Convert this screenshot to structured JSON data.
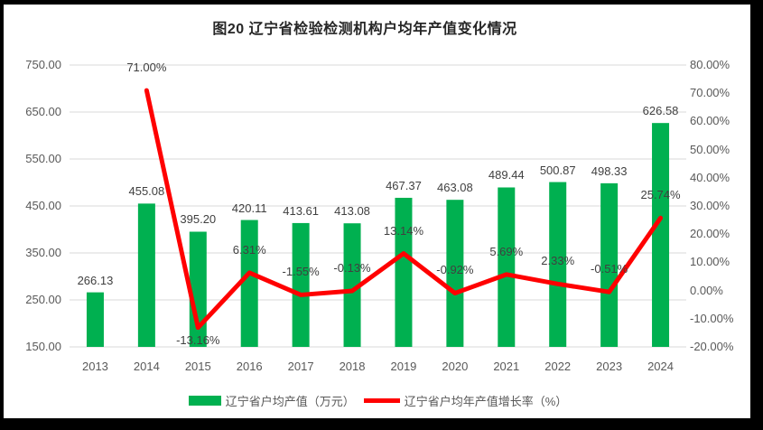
{
  "chart_data": {
    "type": "bar",
    "subtype": "combo-bar-line-dual-axis",
    "title": "图20 辽宁省检验检测机构户均年产值变化情况",
    "categories": [
      "2013",
      "2014",
      "2015",
      "2016",
      "2017",
      "2018",
      "2019",
      "2020",
      "2021",
      "2022",
      "2023",
      "2024"
    ],
    "series": [
      {
        "name": "辽宁省户均产值（万元）",
        "type": "bar",
        "axis": "left",
        "color": "#00B050",
        "values": [
          266.13,
          455.08,
          395.2,
          420.11,
          413.61,
          413.08,
          467.37,
          463.08,
          489.44,
          500.87,
          498.33,
          626.58
        ],
        "labels": [
          "266.13",
          "455.08",
          "395.20",
          "420.11",
          "413.61",
          "413.08",
          "467.37",
          "463.08",
          "489.44",
          "500.87",
          "498.33",
          "626.58"
        ]
      },
      {
        "name": "辽宁省户均年产值增长率（%）",
        "type": "line",
        "axis": "right",
        "color": "#FF0000",
        "values": [
          null,
          71.0,
          -13.16,
          6.31,
          -1.55,
          -0.13,
          13.14,
          -0.92,
          5.69,
          2.33,
          -0.51,
          25.74
        ],
        "labels": [
          null,
          "71.00%",
          "-13.16%",
          "6.31%",
          "-1.55%",
          "-0.13%",
          "13.14%",
          "-0.92%",
          "5.69%",
          "2.33%",
          "-0.51%",
          "25.74%"
        ]
      }
    ],
    "left_axis": {
      "min": 150,
      "max": 750,
      "step": 100,
      "ticks": [
        "750.00",
        "650.00",
        "550.00",
        "450.00",
        "350.00",
        "250.00",
        "150.00"
      ]
    },
    "right_axis": {
      "min": -20,
      "max": 80,
      "step": 10,
      "ticks": [
        "80.00%",
        "70.00%",
        "60.00%",
        "50.00%",
        "40.00%",
        "30.00%",
        "20.00%",
        "10.00%",
        "0.00%",
        "-10.00%",
        "-20.00%"
      ]
    },
    "grid": true,
    "gridline_color": "#D9D9D9",
    "legend_position": "bottom"
  }
}
